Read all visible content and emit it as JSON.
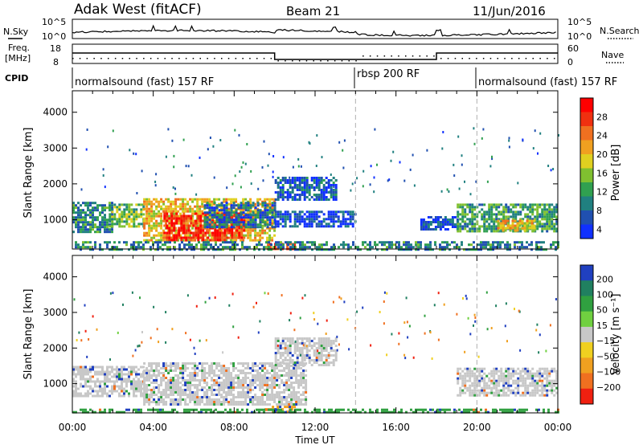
{
  "header": {
    "site": "Adak West (fitACF)",
    "beam": "Beam 21",
    "date": "11/Jun/2016"
  },
  "top_panels": {
    "nsky_label": "N.Sky",
    "nsearch_label": "N.Search",
    "freq_label_1": "Freq.",
    "freq_label_2": "[MHz]",
    "nave_label": "Nave",
    "cpid_label": "CPID",
    "noise_left_ticks": [
      "10^5",
      "10^0"
    ],
    "noise_right_ticks": [
      "10^5",
      "10^0"
    ],
    "freq_left_ticks": [
      "18",
      "8"
    ],
    "freq_right_ticks": [
      "60",
      "0"
    ],
    "cpid_segments": [
      {
        "label": "normalsound (fast) 157 RF",
        "start_h": 0,
        "end_h": 14
      },
      {
        "label": "rbsp 200 RF",
        "start_h": 14,
        "end_h": 20
      },
      {
        "label": "normalsound (fast) 157 RF",
        "start_h": 20,
        "end_h": 24
      }
    ]
  },
  "chart_data": [
    {
      "type": "heatmap",
      "name": "power",
      "xlabel": "Time UT",
      "ylabel": "Slant Range [km]",
      "x_ticks": [
        "00:00",
        "04:00",
        "08:00",
        "12:00",
        "16:00",
        "20:00",
        "00:00"
      ],
      "y_ticks": [
        1000,
        2000,
        3000,
        4000
      ],
      "xlim_hours": [
        0,
        24
      ],
      "ylim_km": [
        180,
        4600
      ],
      "colorbar_label": "Power [dB]",
      "colorbar_ticks": [
        4,
        8,
        12,
        16,
        20,
        24,
        28
      ],
      "colorbar_colors": [
        "#1030ff",
        "#2050b0",
        "#208080",
        "#30a050",
        "#80c030",
        "#e0d020",
        "#f0a020",
        "#f07020",
        "#f03010",
        "#ff0000"
      ],
      "mode_boundaries_h": [
        14,
        20
      ],
      "echo_regions": [
        {
          "start_h": 0.0,
          "end_h": 2.0,
          "range_km": [
            650,
            1500
          ],
          "power_db": 10
        },
        {
          "start_h": 1.8,
          "end_h": 3.5,
          "range_km": [
            800,
            1450
          ],
          "power_db": 14
        },
        {
          "start_h": 3.5,
          "end_h": 10.0,
          "range_km": [
            400,
            1600
          ],
          "power_db": 20
        },
        {
          "start_h": 4.5,
          "end_h": 8.5,
          "range_km": [
            450,
            1200
          ],
          "power_db": 28
        },
        {
          "start_h": 6.5,
          "end_h": 10.0,
          "range_km": [
            800,
            1500
          ],
          "power_db": 8
        },
        {
          "start_h": 9.5,
          "end_h": 11.0,
          "range_km": [
            180,
            350
          ],
          "power_db": 26
        },
        {
          "start_h": 10.0,
          "end_h": 13.0,
          "range_km": [
            1550,
            2200
          ],
          "power_db": 7
        },
        {
          "start_h": 10.0,
          "end_h": 14.0,
          "range_km": [
            800,
            1250
          ],
          "power_db": 6
        },
        {
          "start_h": 17.2,
          "end_h": 19.0,
          "range_km": [
            750,
            1100
          ],
          "power_db": 5
        },
        {
          "start_h": 19.0,
          "end_h": 24.0,
          "range_km": [
            700,
            1450
          ],
          "power_db": 12
        },
        {
          "start_h": 21.0,
          "end_h": 22.8,
          "range_km": [
            700,
            1000
          ],
          "power_db": 20
        },
        {
          "start_h": 0.0,
          "end_h": 24.0,
          "range_km": [
            180,
            400
          ],
          "power_db": 10
        }
      ]
    },
    {
      "type": "heatmap",
      "name": "velocity",
      "xlabel": "Time UT",
      "ylabel": "Slant Range [km]",
      "x_ticks": [
        "00:00",
        "04:00",
        "08:00",
        "12:00",
        "16:00",
        "20:00",
        "00:00"
      ],
      "y_ticks": [
        1000,
        2000,
        3000,
        4000
      ],
      "xlim_hours": [
        0,
        24
      ],
      "ylim_km": [
        180,
        4600
      ],
      "colorbar_label": "Velocity [m s⁻¹]",
      "colorbar_ticks": [
        200,
        100,
        50,
        15,
        -15,
        -50,
        -100,
        -200
      ],
      "colorbar_colors": [
        "#2040c0",
        "#208060",
        "#30a040",
        "#70d040",
        "#c8c8c8",
        "#f0d020",
        "#f0a020",
        "#f07020",
        "#f02010"
      ],
      "mode_boundaries_h": [
        14,
        20
      ],
      "echo_regions": [
        {
          "start_h": 0.0,
          "end_h": 3.5,
          "range_km": [
            650,
            1500
          ],
          "velocity_ms": 0
        },
        {
          "start_h": 3.5,
          "end_h": 11.5,
          "range_km": [
            400,
            1600
          ],
          "velocity_ms": 0
        },
        {
          "start_h": 9.5,
          "end_h": 11.0,
          "range_km": [
            180,
            380
          ],
          "velocity_ms": -60
        },
        {
          "start_h": 10.0,
          "end_h": 13.0,
          "range_km": [
            1550,
            2300
          ],
          "velocity_ms": 0
        },
        {
          "start_h": 19.0,
          "end_h": 24.0,
          "range_km": [
            700,
            1450
          ],
          "velocity_ms": 0
        },
        {
          "start_h": 0.0,
          "end_h": 24.0,
          "range_km": [
            180,
            300
          ],
          "velocity_ms": 40
        }
      ]
    }
  ],
  "time_axis_label": "Time UT"
}
